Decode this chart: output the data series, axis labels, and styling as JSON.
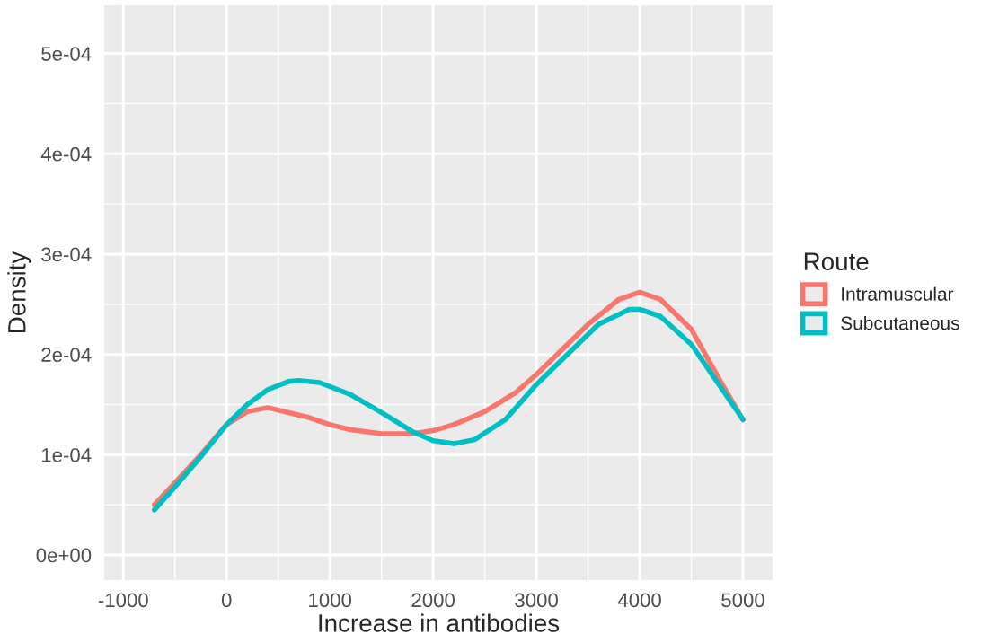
{
  "chart_data": {
    "type": "line",
    "xlabel": "Increase in antibodies",
    "ylabel": "Density",
    "legend_title": "Route",
    "legend": "right",
    "grid": true,
    "xlim": [
      -1185,
      5287
    ],
    "ylim": [
      -2.5e-05,
      0.000548
    ],
    "xticks": [
      -1000,
      0,
      1000,
      2000,
      3000,
      4000,
      5000
    ],
    "yticks": [
      {
        "value": 0,
        "label": "0e+00"
      },
      {
        "value": 0.0001,
        "label": "1e-04"
      },
      {
        "value": 0.0002,
        "label": "2e-04"
      },
      {
        "value": 0.0003,
        "label": "3e-04"
      },
      {
        "value": 0.0004,
        "label": "4e-04"
      },
      {
        "value": 0.0005,
        "label": "5e-04"
      }
    ],
    "series": [
      {
        "name": "Intramuscular",
        "color": "#f8766d",
        "x": [
          -700,
          -500,
          -250,
          0,
          200,
          400,
          600,
          800,
          1000,
          1200,
          1500,
          1800,
          2000,
          2200,
          2500,
          2800,
          3000,
          3200,
          3500,
          3800,
          4000,
          4200,
          4500,
          4800,
          5000
        ],
        "values": [
          5e-05,
          7.2e-05,
          0.0001,
          0.00013,
          0.000143,
          0.000147,
          0.000142,
          0.000137,
          0.00013,
          0.000125,
          0.000121,
          0.000121,
          0.000124,
          0.00013,
          0.000143,
          0.000162,
          0.00018,
          0.0002,
          0.00023,
          0.000255,
          0.000262,
          0.000255,
          0.000225,
          0.00017,
          0.000135
        ]
      },
      {
        "name": "Subcutaneous",
        "color": "#00bfc4",
        "x": [
          -700,
          -500,
          -250,
          0,
          200,
          400,
          600,
          700,
          900,
          1200,
          1500,
          1800,
          2000,
          2200,
          2400,
          2700,
          3000,
          3300,
          3600,
          3900,
          4000,
          4200,
          4500,
          4800,
          5000
        ],
        "values": [
          4.5e-05,
          6.8e-05,
          9.8e-05,
          0.00013,
          0.00015,
          0.000165,
          0.000173,
          0.000174,
          0.000172,
          0.00016,
          0.000142,
          0.000123,
          0.000114,
          0.000111,
          0.000115,
          0.000135,
          0.00017,
          0.0002,
          0.00023,
          0.000245,
          0.000245,
          0.000238,
          0.00021,
          0.000165,
          0.000135
        ]
      }
    ]
  }
}
